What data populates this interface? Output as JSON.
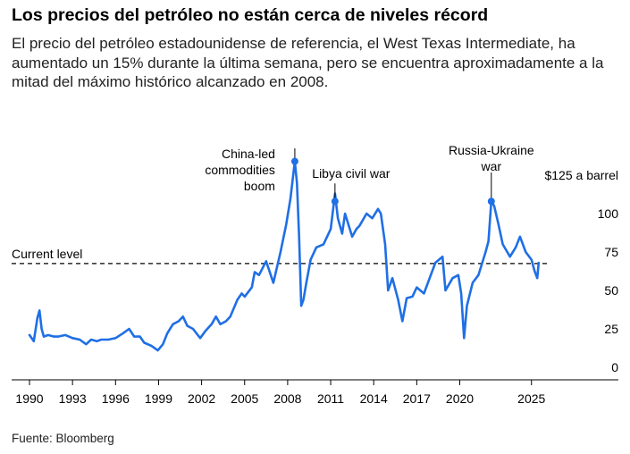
{
  "title": "Los precios del petróleo no están cerca de niveles récord",
  "subtitle": "El precio del petróleo estadounidense de referencia, el West Texas Intermediate, ha aumentado un 15% durante la última semana, pero se encuentra aproximadamente a la mitad del máximo histórico alcanzado en 2008.",
  "source": "Fuente: Bloomberg",
  "colors": {
    "line": "#1f6fe5",
    "text": "#000000",
    "reference": "#000000"
  },
  "chart_data": {
    "type": "line",
    "x_ticks": [
      1990,
      1993,
      1996,
      1999,
      2002,
      2005,
      2008,
      2011,
      2014,
      2017,
      2020,
      2025
    ],
    "x_tick_labels": [
      "1990",
      "1993",
      "1996",
      "1999",
      "2002",
      "2005",
      "2008",
      "2011",
      "2014",
      "2017",
      "2020",
      "2025"
    ],
    "y_ticks": [
      0,
      25,
      50,
      75,
      100
    ],
    "y_tick_labels": [
      "0",
      "25",
      "50",
      "75",
      "100"
    ],
    "y_axis_top_label": "$125 a barrel",
    "xlim": [
      1989.6,
      2026.6
    ],
    "ylim": [
      0,
      140
    ],
    "grid": false,
    "reference_line": {
      "label": "Current level",
      "value": 67.5,
      "style": "dashed"
    },
    "annotations": [
      {
        "label_lines": [
          "China-led",
          "commodities",
          "boom"
        ],
        "x": 2008.5,
        "y": 134
      },
      {
        "label_lines": [
          "Libya civil war"
        ],
        "x": 2011.3,
        "y": 108
      },
      {
        "label_lines": [
          "Russia-Ukraine",
          "war"
        ],
        "x": 2022.2,
        "y": 108
      }
    ],
    "series": [
      {
        "x": [
          1990.0,
          1990.3,
          1990.55,
          1990.7,
          1990.85,
          1991.0,
          1991.3,
          1991.7,
          1992.0,
          1992.5,
          1993.0,
          1993.5,
          1993.95,
          1994.3,
          1994.7,
          1995.0,
          1995.5,
          1996.0,
          1996.5,
          1996.95,
          1997.3,
          1997.7,
          1998.0,
          1998.5,
          1998.95,
          1999.3,
          1999.6,
          2000.0,
          2000.4,
          2000.7,
          2001.0,
          2001.4,
          2001.9,
          2002.3,
          2002.7,
          2003.0,
          2003.3,
          2003.7,
          2004.0,
          2004.5,
          2004.8,
          2005.0,
          2005.5,
          2005.7,
          2006.0,
          2006.5,
          2007.0,
          2007.5,
          2007.9,
          2008.2,
          2008.5,
          2008.65,
          2008.8,
          2008.95,
          2009.1,
          2009.3,
          2009.6,
          2010.0,
          2010.5,
          2011.0,
          2011.3,
          2011.5,
          2011.8,
          2012.0,
          2012.5,
          2012.8,
          2013.0,
          2013.5,
          2013.9,
          2014.3,
          2014.5,
          2014.8,
          2015.0,
          2015.3,
          2015.7,
          2016.0,
          2016.3,
          2016.7,
          2017.0,
          2017.5,
          2017.9,
          2018.3,
          2018.8,
          2019.0,
          2019.5,
          2019.9,
          2020.1,
          2020.3,
          2020.5,
          2020.9,
          2021.3,
          2021.8,
          2022.0,
          2022.2,
          2022.4,
          2022.7,
          2023.0,
          2023.5,
          2023.9,
          2024.2,
          2024.6,
          2025.0,
          2025.2,
          2025.4,
          2025.5
        ],
        "y": [
          21,
          17,
          32,
          37,
          25,
          20,
          21,
          20,
          20,
          21,
          19,
          18,
          15,
          18,
          17,
          18,
          18,
          19,
          22,
          25,
          20,
          20,
          16,
          14,
          11,
          15,
          22,
          28,
          30,
          33,
          27,
          25,
          19,
          24,
          28,
          33,
          28,
          30,
          33,
          44,
          48,
          46,
          52,
          62,
          60,
          69,
          55,
          75,
          93,
          110,
          134,
          120,
          85,
          40,
          44,
          55,
          70,
          78,
          80,
          90,
          113,
          97,
          87,
          100,
          85,
          90,
          92,
          100,
          97,
          103,
          100,
          80,
          50,
          58,
          44,
          30,
          45,
          46,
          52,
          48,
          58,
          68,
          72,
          50,
          58,
          60,
          48,
          19,
          40,
          55,
          60,
          75,
          82,
          108,
          105,
          93,
          80,
          72,
          78,
          85,
          75,
          70,
          63,
          58,
          68
        ]
      }
    ]
  }
}
